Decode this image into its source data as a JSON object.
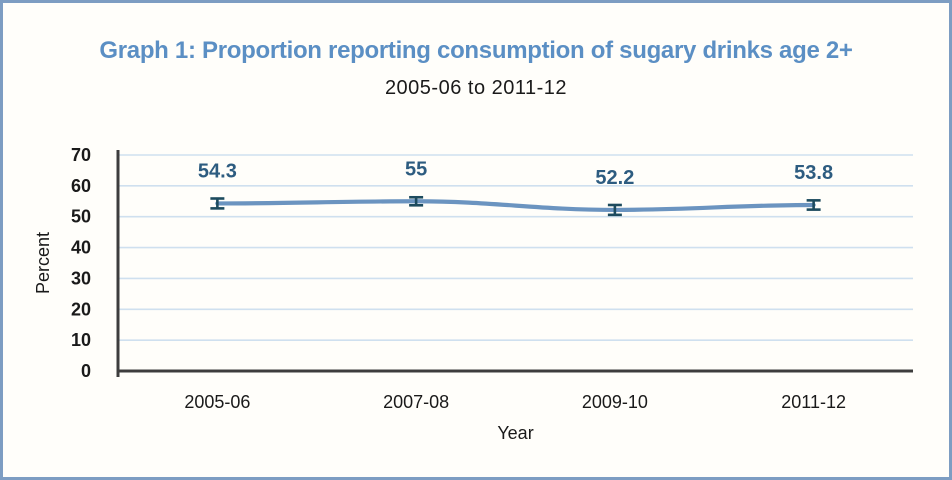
{
  "header": {
    "title": "Graph 1: Proportion reporting consumption of sugary drinks age 2+",
    "subtitle": "2005-06 to 2011-12"
  },
  "chart_data": {
    "type": "line",
    "title": "Graph 1: Proportion reporting consumption of sugary drinks age 2+",
    "subtitle": "2005-06 to 2011-12",
    "categories": [
      "2005-06",
      "2007-08",
      "2009-10",
      "2011-12"
    ],
    "values": [
      54.3,
      55,
      52.2,
      53.8
    ],
    "value_labels": [
      "54.3",
      "55",
      "52.2",
      "53.8"
    ],
    "error_bars": [
      1.6,
      1.3,
      1.6,
      1.5
    ],
    "xlabel": "Year",
    "ylabel": "Percent",
    "ylim": [
      0,
      70
    ],
    "ytick_step": 10,
    "ytick_labels": [
      "0",
      "10",
      "20",
      "30",
      "40",
      "50",
      "60",
      "70"
    ],
    "grid": "horizontal",
    "legend": "none",
    "line_smoothed": true,
    "colors": {
      "title": "#5b8fc4",
      "line": "#6b94c0",
      "error_bar": "#1d4b5e",
      "data_label": "#2d5c80",
      "gridline": "#cfe0ef",
      "axis": "#3d3d3d",
      "tick_text": "#1a1a1a",
      "panel_border": "#7d9dc2"
    }
  }
}
